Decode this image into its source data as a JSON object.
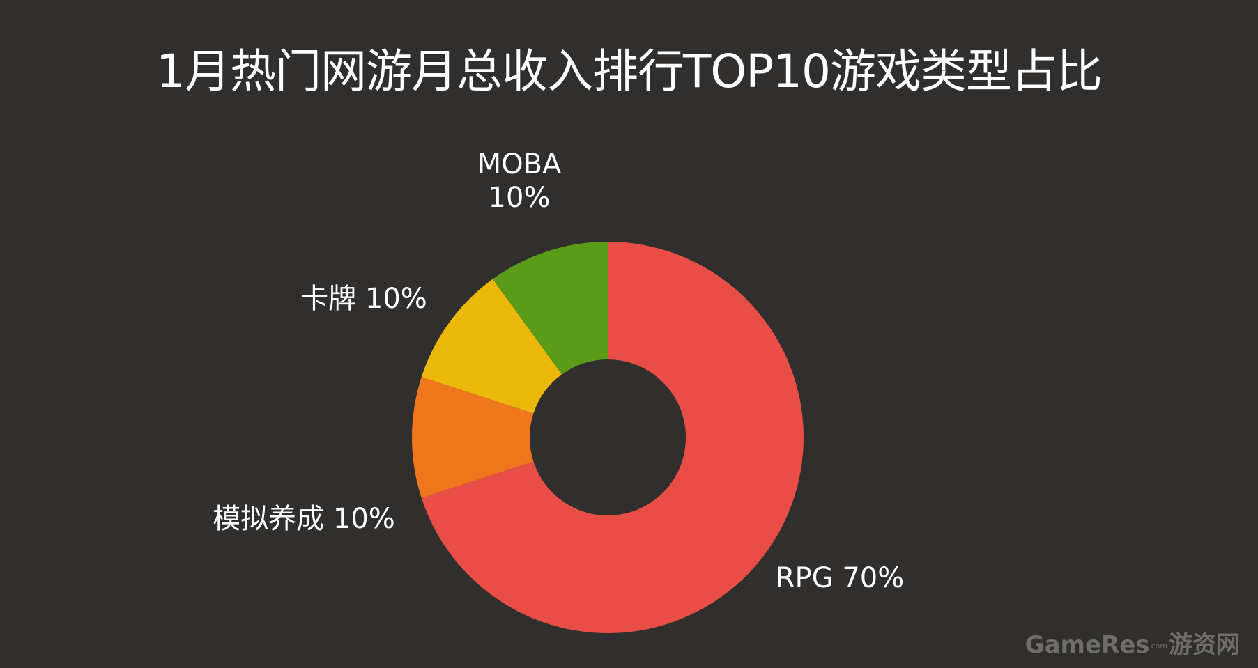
{
  "title": "1月热门网游月总收入排行TOP10游戏类型占比",
  "chart_data": {
    "type": "pie",
    "donut": true,
    "title": "1月热门网游月总收入排行TOP10游戏类型占比",
    "slices": [
      {
        "name": "RPG",
        "value": 70,
        "label": "RPG 70%",
        "color": "#e84e45"
      },
      {
        "name": "模拟养成",
        "value": 10,
        "label": "模拟养成 10%",
        "color": "#ef761d"
      },
      {
        "name": "卡牌",
        "value": 10,
        "label": "卡牌 10%",
        "color": "#ebb80a"
      },
      {
        "name": "MOBA",
        "value": 10,
        "label": "MOBA 10%",
        "color": "#5a9c18"
      }
    ],
    "legend": "none"
  },
  "watermark": {
    "main": "GameRes",
    "sub": "com",
    "cn": "游资网"
  },
  "colors": {
    "background": "#302f2e",
    "text": "#ffffff",
    "watermark": "#6e6d6b"
  }
}
